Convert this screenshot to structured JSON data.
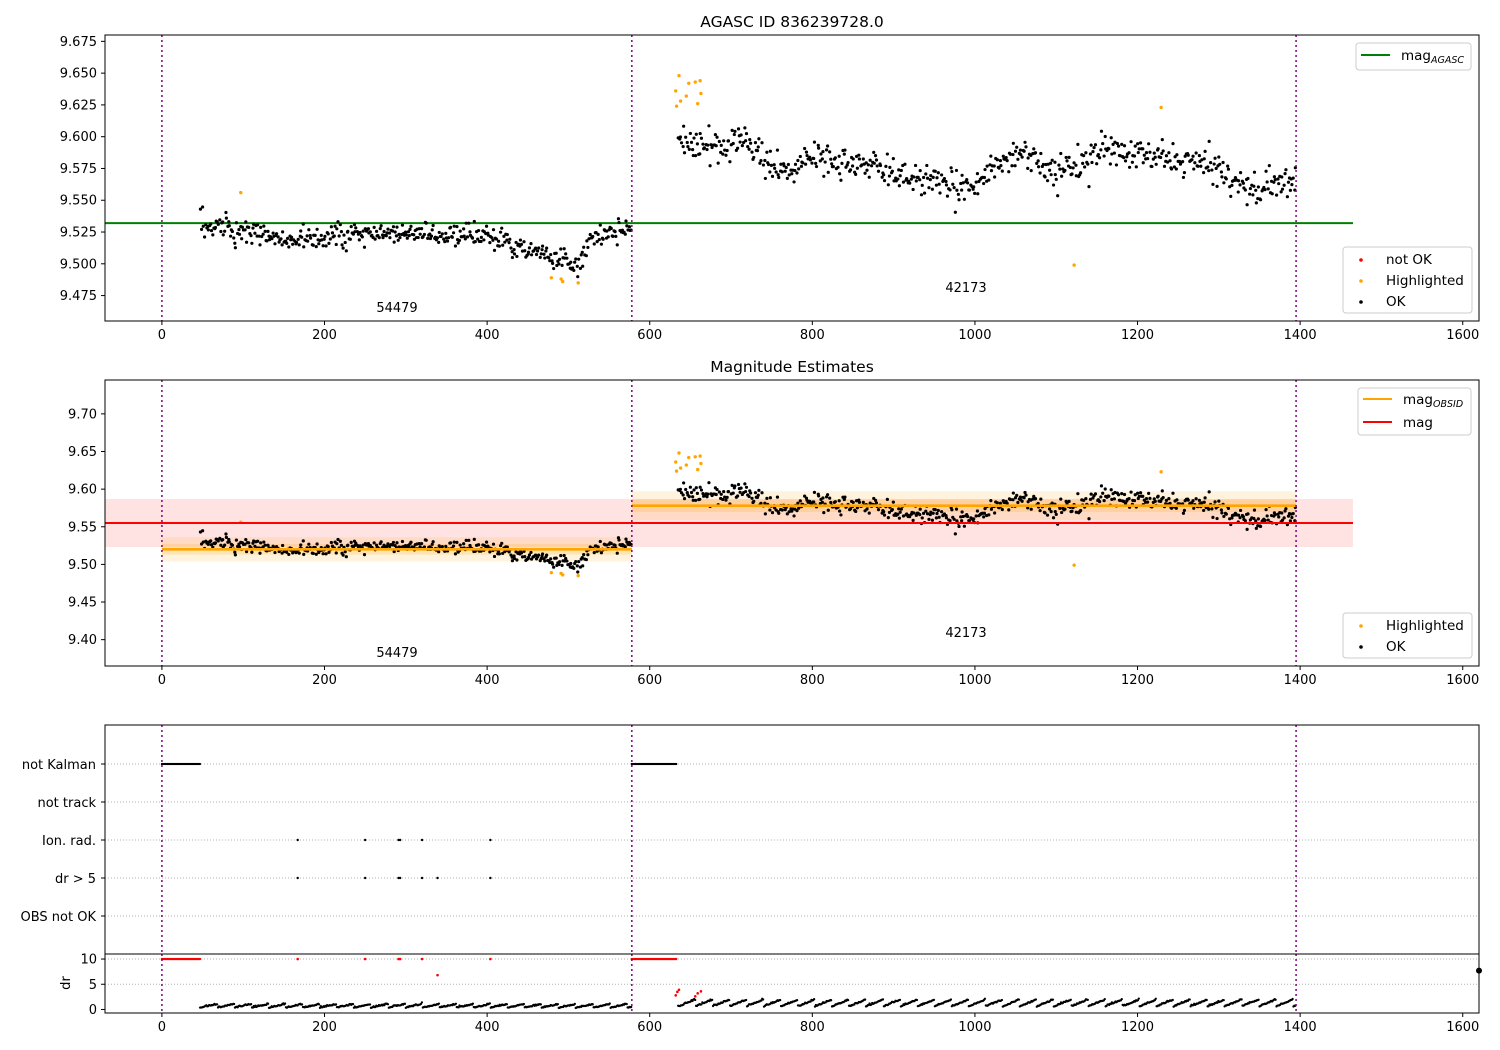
{
  "chart_data": [
    {
      "type": "scatter",
      "title": "AGASC ID 836239728.0",
      "xlim": [
        -70,
        1620
      ],
      "ylim": [
        9.455,
        9.68
      ],
      "xticks": [
        0,
        200,
        400,
        600,
        800,
        1000,
        1200,
        1400,
        1600
      ],
      "yticks": [
        9.475,
        9.5,
        9.525,
        9.55,
        9.575,
        9.6,
        9.625,
        9.65,
        9.675
      ],
      "ytick_labels": [
        "9.475",
        "9.500",
        "9.525",
        "9.550",
        "9.575",
        "9.600",
        "9.625",
        "9.650",
        "9.675"
      ],
      "vlines": [
        0,
        578,
        1395
      ],
      "hlines": [
        {
          "name": "mag_AGASC",
          "y": 9.532,
          "x": [
            -70,
            1465
          ],
          "color": "#008000"
        }
      ],
      "legend_upper": {
        "placement": "top-right",
        "entries": [
          {
            "main": "mag",
            "sub": "AGASC",
            "kind": "line",
            "color": "#008000"
          }
        ]
      },
      "legend_lower": {
        "placement": "bottom-right",
        "entries": [
          {
            "label": "not OK",
            "kind": "dot",
            "color": "#ff0000"
          },
          {
            "label": "Highlighted",
            "kind": "dot",
            "color": "#ffa500"
          },
          {
            "label": "OK",
            "kind": "dot",
            "color": "#000000"
          }
        ]
      },
      "annotations": [
        {
          "text": "54479",
          "x": 289,
          "y": 9.466
        },
        {
          "text": "42173",
          "x": 989,
          "y": 9.481
        }
      ],
      "segments": [
        {
          "x": [
            47,
            578
          ],
          "points": 430,
          "y_curve": [
            [
              47,
              9.532
            ],
            [
              150,
              9.52
            ],
            [
              260,
              9.522
            ],
            [
              330,
              9.524
            ],
            [
              400,
              9.522
            ],
            [
              470,
              9.508
            ],
            [
              510,
              9.5
            ],
            [
              530,
              9.52
            ],
            [
              578,
              9.53
            ]
          ],
          "scatter": 0.009
        },
        {
          "x": [
            635,
            1395
          ],
          "points": 590,
          "y_curve": [
            [
              635,
              9.598
            ],
            [
              680,
              9.59
            ],
            [
              710,
              9.6
            ],
            [
              770,
              9.57
            ],
            [
              800,
              9.585
            ],
            [
              900,
              9.572
            ],
            [
              980,
              9.558
            ],
            [
              1060,
              9.59
            ],
            [
              1100,
              9.57
            ],
            [
              1160,
              9.59
            ],
            [
              1200,
              9.585
            ],
            [
              1250,
              9.582
            ],
            [
              1300,
              9.575
            ],
            [
              1340,
              9.558
            ],
            [
              1395,
              9.565
            ]
          ],
          "scatter": 0.011
        }
      ],
      "highlighted_points": [
        {
          "x": 97,
          "y": 9.556
        },
        {
          "x": 479,
          "y": 9.489
        },
        {
          "x": 491,
          "y": 9.488
        },
        {
          "x": 493,
          "y": 9.486
        },
        {
          "x": 512,
          "y": 9.485
        },
        {
          "x": 632,
          "y": 9.636
        },
        {
          "x": 633,
          "y": 9.624
        },
        {
          "x": 636,
          "y": 9.648
        },
        {
          "x": 638,
          "y": 9.628
        },
        {
          "x": 645,
          "y": 9.632
        },
        {
          "x": 648,
          "y": 9.642
        },
        {
          "x": 656,
          "y": 9.643
        },
        {
          "x": 659,
          "y": 9.626
        },
        {
          "x": 662,
          "y": 9.644
        },
        {
          "x": 663,
          "y": 9.634
        },
        {
          "x": 1122,
          "y": 9.499
        },
        {
          "x": 1229,
          "y": 9.623
        }
      ]
    },
    {
      "type": "scatter",
      "title": "Magnitude Estimates",
      "xlim": [
        -70,
        1620
      ],
      "ylim": [
        9.365,
        9.745
      ],
      "xticks": [
        0,
        200,
        400,
        600,
        800,
        1000,
        1200,
        1400,
        1600
      ],
      "yticks": [
        9.4,
        9.45,
        9.5,
        9.55,
        9.6,
        9.65,
        9.7
      ],
      "ytick_labels": [
        "9.40",
        "9.45",
        "9.50",
        "9.55",
        "9.60",
        "9.65",
        "9.70"
      ],
      "vlines": [
        0,
        578,
        1395
      ],
      "mag": {
        "value": 9.555,
        "err": 0.032,
        "x": [
          -70,
          1465
        ],
        "color": "#ff0000"
      },
      "mag_obsid": [
        {
          "x": [
            0,
            578
          ],
          "value": 9.52,
          "err": 0.01
        },
        {
          "x": [
            578,
            1395
          ],
          "value": 9.578,
          "err": 0.012
        }
      ],
      "legend_upper": {
        "placement": "top-right",
        "entries": [
          {
            "main": "mag",
            "sub": "OBSID",
            "kind": "line",
            "color": "#ffa500"
          },
          {
            "main": "mag",
            "sub": "",
            "kind": "line",
            "color": "#ff0000"
          }
        ]
      },
      "legend_lower": {
        "placement": "bottom-right",
        "entries": [
          {
            "label": "Highlighted",
            "kind": "dot",
            "color": "#ffa500"
          },
          {
            "label": "OK",
            "kind": "dot",
            "color": "#000000"
          }
        ]
      },
      "annotations": [
        {
          "text": "54479",
          "x": 289,
          "y": 9.38
        },
        {
          "text": "42173",
          "x": 989,
          "y": 9.408
        }
      ]
    },
    {
      "type": "scatter",
      "title": "",
      "xlim": [
        -70,
        1620
      ],
      "categories": [
        "not Kalman",
        "not track",
        "Ion. rad.",
        "dr > 5",
        "OBS not OK"
      ],
      "vlines": [
        0,
        578,
        1395
      ],
      "flags": {
        "not Kalman": [
          {
            "from": 0,
            "to": 47
          },
          {
            "from": 578,
            "to": 633
          }
        ],
        "not track": [],
        "Ion. rad.": [
          167,
          250,
          291,
          293,
          320,
          404
        ],
        "dr > 5": [
          167,
          250,
          291,
          293,
          320,
          339,
          404
        ],
        "OBS not OK": []
      }
    },
    {
      "type": "scatter",
      "title": "",
      "ylabel": "dr",
      "xlim": [
        -70,
        1620
      ],
      "ylim": [
        -0.7,
        11
      ],
      "xticks": [
        0,
        200,
        400,
        600,
        800,
        1000,
        1200,
        1400,
        1600
      ],
      "yticks": [
        0,
        5,
        10
      ],
      "ytick_labels": [
        "0",
        "5",
        "10"
      ],
      "vlines": [
        0,
        578,
        1395
      ],
      "clipped_value": 10,
      "red_runs": [
        {
          "from": 0,
          "to": 47
        },
        {
          "from": 578,
          "to": 633
        }
      ],
      "red_points": [
        {
          "x": 167,
          "y": 10
        },
        {
          "x": 250,
          "y": 10
        },
        {
          "x": 291,
          "y": 10
        },
        {
          "x": 293,
          "y": 10
        },
        {
          "x": 320,
          "y": 10
        },
        {
          "x": 339,
          "y": 6.8
        },
        {
          "x": 404,
          "y": 10
        },
        {
          "x": 632,
          "y": 2.8
        },
        {
          "x": 634,
          "y": 3.5
        },
        {
          "x": 636,
          "y": 3.9
        },
        {
          "x": 656,
          "y": 2.6
        },
        {
          "x": 659,
          "y": 3.2
        },
        {
          "x": 663,
          "y": 3.6
        }
      ],
      "segments": [
        {
          "x": [
            47,
            578
          ],
          "level": 0.8
        },
        {
          "x": [
            635,
            1395
          ],
          "level": 1.5
        }
      ]
    }
  ]
}
